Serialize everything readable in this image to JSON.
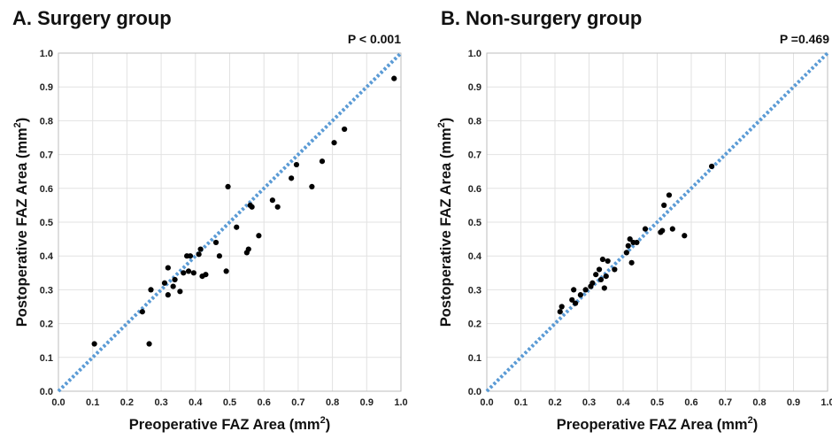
{
  "chart_data": [
    {
      "type": "scatter",
      "title": "A. Surgery group",
      "annotation": "P < 0.001",
      "xlabel": "Preoperative FAZ Area (mm",
      "ylabel": "Postoperative FAZ Area (mm",
      "label_superscript": "2",
      "label_suffix": ")",
      "xlim": [
        0,
        1.0
      ],
      "ylim": [
        0,
        1.0
      ],
      "xticks": [
        "0.0",
        "0.1",
        "0.2",
        "0.3",
        "0.4",
        "0.5",
        "0.6",
        "0.7",
        "0.8",
        "0.9",
        "1.0"
      ],
      "yticks": [
        "0.0",
        "0.1",
        "0.2",
        "0.3",
        "0.4",
        "0.5",
        "0.6",
        "0.7",
        "0.8",
        "0.9",
        "1.0"
      ],
      "grid": true,
      "reference_line": "y = x",
      "points": [
        [
          0.105,
          0.14
        ],
        [
          0.245,
          0.235
        ],
        [
          0.265,
          0.14
        ],
        [
          0.27,
          0.3
        ],
        [
          0.31,
          0.32
        ],
        [
          0.32,
          0.365
        ],
        [
          0.32,
          0.285
        ],
        [
          0.335,
          0.31
        ],
        [
          0.34,
          0.33
        ],
        [
          0.355,
          0.295
        ],
        [
          0.365,
          0.35
        ],
        [
          0.375,
          0.4
        ],
        [
          0.38,
          0.355
        ],
        [
          0.385,
          0.4
        ],
        [
          0.395,
          0.35
        ],
        [
          0.41,
          0.405
        ],
        [
          0.415,
          0.42
        ],
        [
          0.42,
          0.34
        ],
        [
          0.43,
          0.345
        ],
        [
          0.46,
          0.44
        ],
        [
          0.47,
          0.4
        ],
        [
          0.49,
          0.355
        ],
        [
          0.495,
          0.605
        ],
        [
          0.52,
          0.485
        ],
        [
          0.55,
          0.41
        ],
        [
          0.555,
          0.42
        ],
        [
          0.56,
          0.55
        ],
        [
          0.565,
          0.545
        ],
        [
          0.585,
          0.46
        ],
        [
          0.625,
          0.565
        ],
        [
          0.64,
          0.545
        ],
        [
          0.68,
          0.63
        ],
        [
          0.695,
          0.67
        ],
        [
          0.74,
          0.605
        ],
        [
          0.77,
          0.68
        ],
        [
          0.805,
          0.735
        ],
        [
          0.835,
          0.775
        ],
        [
          0.98,
          0.925
        ]
      ]
    },
    {
      "type": "scatter",
      "title": "B. Non-surgery group",
      "annotation": "P =0.469",
      "xlabel": "Preoperative FAZ Area (mm",
      "ylabel": "Postoperative FAZ Area (mm",
      "label_superscript": "2",
      "label_suffix": ")",
      "xlim": [
        0,
        1.0
      ],
      "ylim": [
        0,
        1.0
      ],
      "xticks": [
        "0.0",
        "0.1",
        "0.2",
        "0.3",
        "0.4",
        "0.5",
        "0.6",
        "0.7",
        "0.8",
        "0.9",
        "1.0"
      ],
      "yticks": [
        "0.0",
        "0.1",
        "0.2",
        "0.3",
        "0.4",
        "0.5",
        "0.6",
        "0.7",
        "0.8",
        "0.9",
        "1.0"
      ],
      "grid": true,
      "reference_line": "y = x",
      "points": [
        [
          0.215,
          0.235
        ],
        [
          0.22,
          0.25
        ],
        [
          0.25,
          0.27
        ],
        [
          0.255,
          0.3
        ],
        [
          0.26,
          0.26
        ],
        [
          0.275,
          0.285
        ],
        [
          0.29,
          0.3
        ],
        [
          0.305,
          0.31
        ],
        [
          0.31,
          0.32
        ],
        [
          0.32,
          0.345
        ],
        [
          0.33,
          0.36
        ],
        [
          0.335,
          0.33
        ],
        [
          0.34,
          0.39
        ],
        [
          0.345,
          0.305
        ],
        [
          0.35,
          0.34
        ],
        [
          0.355,
          0.385
        ],
        [
          0.375,
          0.36
        ],
        [
          0.41,
          0.41
        ],
        [
          0.415,
          0.43
        ],
        [
          0.42,
          0.45
        ],
        [
          0.425,
          0.38
        ],
        [
          0.43,
          0.44
        ],
        [
          0.44,
          0.44
        ],
        [
          0.465,
          0.48
        ],
        [
          0.51,
          0.47
        ],
        [
          0.515,
          0.475
        ],
        [
          0.52,
          0.55
        ],
        [
          0.535,
          0.58
        ],
        [
          0.545,
          0.48
        ],
        [
          0.58,
          0.46
        ],
        [
          0.66,
          0.665
        ]
      ]
    }
  ]
}
